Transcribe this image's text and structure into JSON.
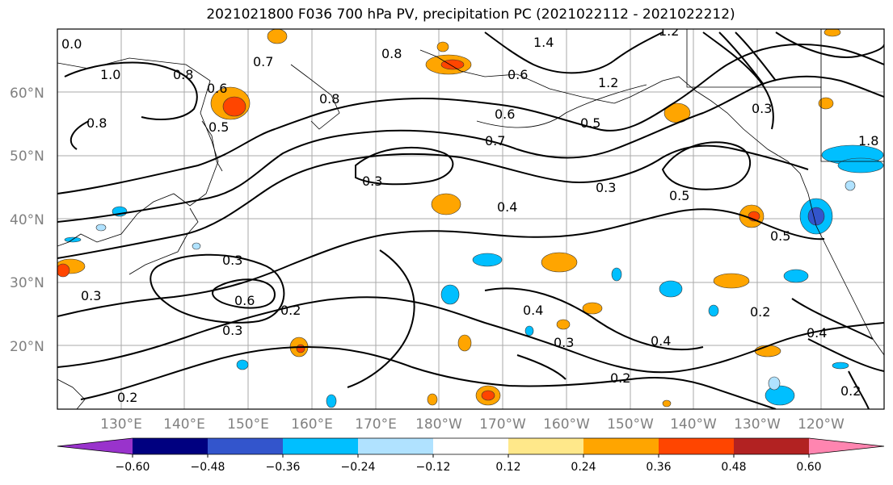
{
  "title": "2021021800 F036 700 hPa PV, precipitation PC (2021022112 - 2021022212)",
  "lat_labels": [
    "60°N",
    "50°N",
    "40°N",
    "30°N",
    "20°N"
  ],
  "lon_labels": [
    "130°E",
    "140°E",
    "150°E",
    "160°E",
    "170°E",
    "180°W",
    "170°W",
    "160°W",
    "150°W",
    "140°W",
    "130°W",
    "120°W"
  ],
  "colorbar": {
    "colors": [
      "#9933cc",
      "#000080",
      "#3355cc",
      "#00bfff",
      "#b0e2ff",
      "#ffffff",
      "#ffe88a",
      "#ffa500",
      "#ff4500",
      "#b22222",
      "#ff85b0"
    ],
    "ticks": [
      "−0.60",
      "−0.48",
      "−0.36",
      "−0.24",
      "−0.12",
      "0.12",
      "0.24",
      "0.36",
      "0.48",
      "0.60"
    ]
  },
  "contour_labels": [
    "0.7",
    "0.8",
    "0.8",
    "0.6",
    "0.5",
    "1.0",
    "0.8",
    "0.8",
    "0.6",
    "0.6",
    "0.7",
    "0.5",
    "1.2",
    "1.4",
    "1.2",
    "0.3",
    "0.4",
    "0.3",
    "0.5",
    "0.5",
    "0.3",
    "0.3",
    "0.6",
    "0.2",
    "0.3",
    "0.3",
    "0.4",
    "0.4",
    "0.2",
    "0.2",
    "0.4",
    "0.2",
    "0.2",
    "1.8",
    "0.3",
    "0.0"
  ]
}
